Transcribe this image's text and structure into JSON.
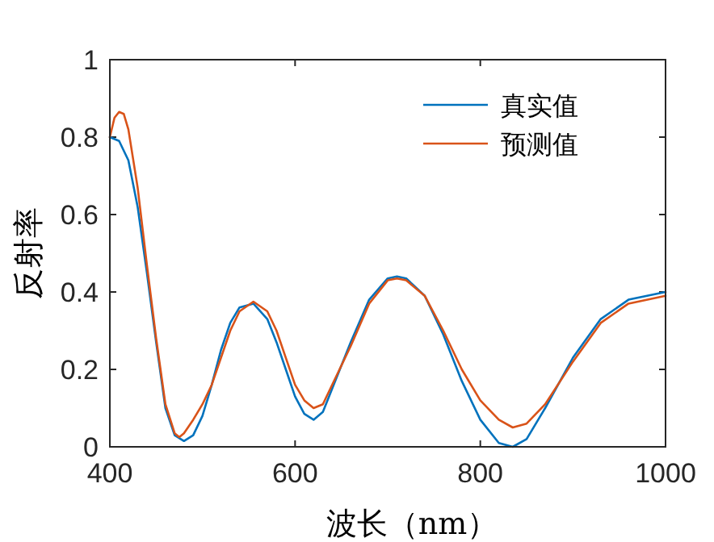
{
  "chart_data": {
    "type": "line",
    "xlabel": "波长（nm）",
    "ylabel": "反射率",
    "xlim": [
      400,
      1000
    ],
    "ylim": [
      0,
      1
    ],
    "xticks": [
      400,
      600,
      800,
      1000
    ],
    "yticks": [
      0,
      0.2,
      0.4,
      0.6,
      0.8,
      1
    ],
    "legend": "top right",
    "grid": false,
    "marker": "none",
    "line_style": "solid",
    "series": [
      {
        "name": "真实值",
        "color": "#0072bd",
        "x": [
          400,
          410,
          420,
          430,
          440,
          450,
          460,
          470,
          480,
          490,
          500,
          510,
          520,
          530,
          540,
          555,
          570,
          580,
          590,
          600,
          610,
          620,
          630,
          640,
          660,
          680,
          700,
          710,
          720,
          740,
          760,
          780,
          800,
          820,
          835,
          850,
          870,
          900,
          930,
          960,
          1000
        ],
        "values": [
          0.8,
          0.79,
          0.74,
          0.62,
          0.45,
          0.27,
          0.1,
          0.03,
          0.015,
          0.03,
          0.08,
          0.16,
          0.25,
          0.32,
          0.36,
          0.37,
          0.33,
          0.27,
          0.2,
          0.13,
          0.085,
          0.07,
          0.09,
          0.15,
          0.27,
          0.38,
          0.435,
          0.44,
          0.435,
          0.39,
          0.29,
          0.17,
          0.07,
          0.01,
          0.0,
          0.02,
          0.1,
          0.23,
          0.33,
          0.38,
          0.4
        ]
      },
      {
        "name": "预测值",
        "color": "#d95319",
        "x": [
          400,
          405,
          410,
          415,
          420,
          430,
          440,
          450,
          460,
          470,
          475,
          480,
          490,
          500,
          510,
          520,
          530,
          540,
          555,
          570,
          580,
          590,
          600,
          610,
          620,
          630,
          640,
          660,
          680,
          700,
          710,
          720,
          740,
          760,
          780,
          800,
          820,
          835,
          850,
          870,
          900,
          930,
          960,
          1000
        ],
        "values": [
          0.8,
          0.85,
          0.865,
          0.86,
          0.82,
          0.67,
          0.47,
          0.28,
          0.11,
          0.035,
          0.025,
          0.035,
          0.07,
          0.11,
          0.16,
          0.23,
          0.3,
          0.35,
          0.375,
          0.35,
          0.3,
          0.23,
          0.16,
          0.12,
          0.1,
          0.11,
          0.16,
          0.26,
          0.37,
          0.43,
          0.435,
          0.43,
          0.39,
          0.3,
          0.2,
          0.12,
          0.07,
          0.05,
          0.06,
          0.11,
          0.22,
          0.32,
          0.37,
          0.39
        ]
      }
    ]
  }
}
